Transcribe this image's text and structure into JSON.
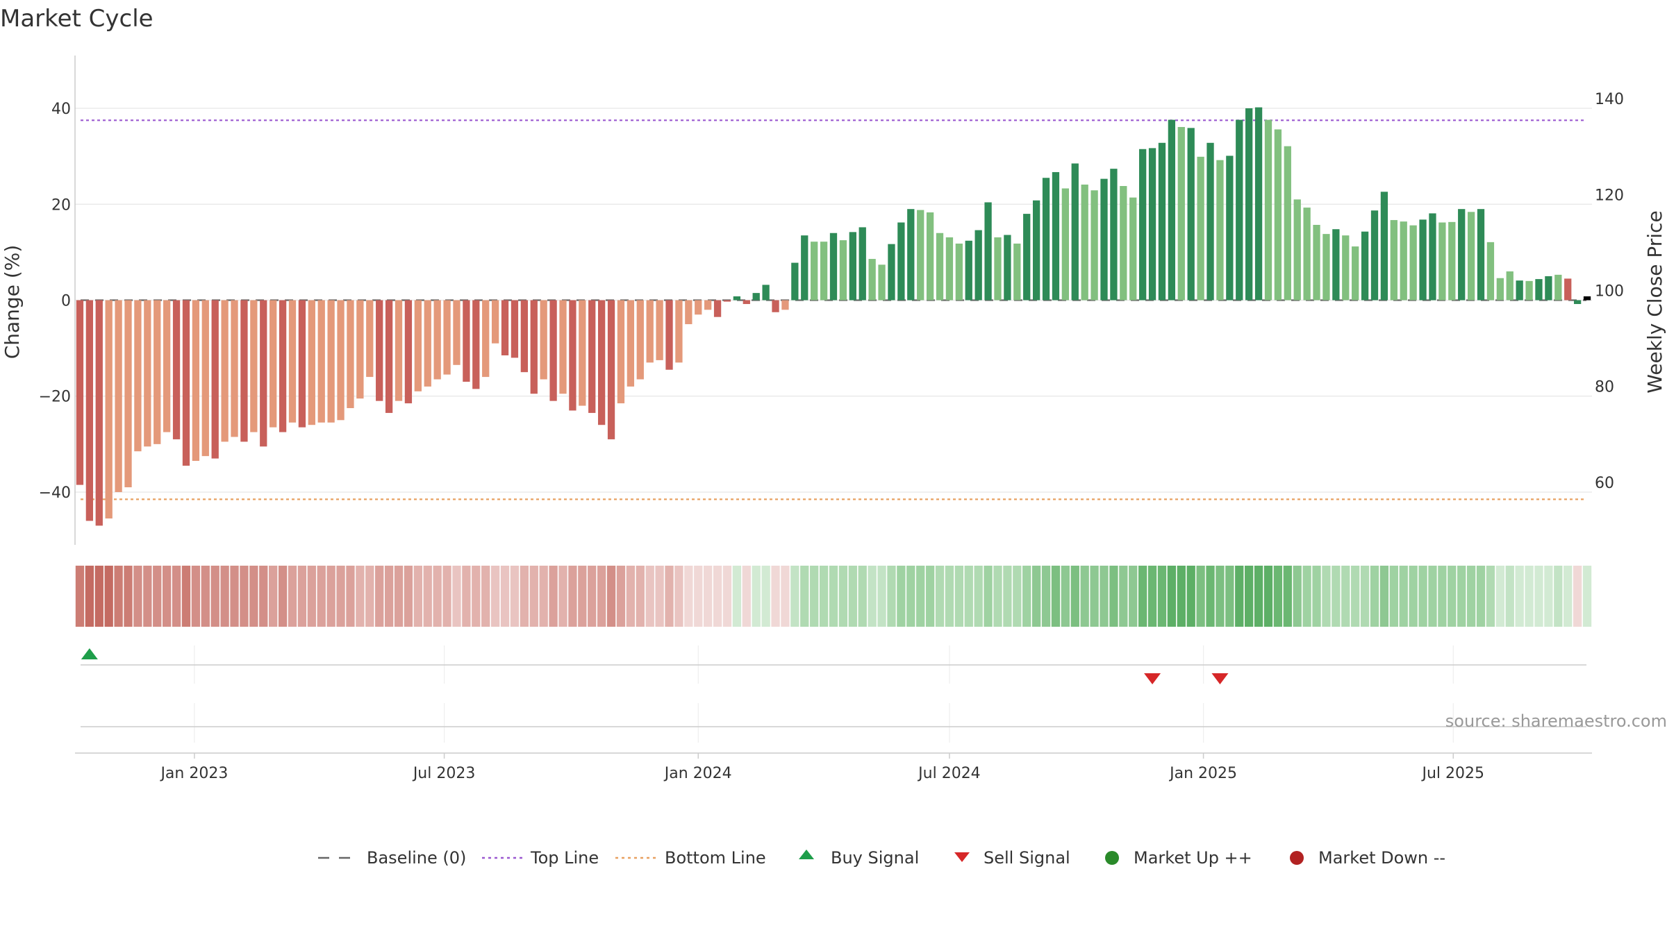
{
  "chart_data": {
    "type": "bar",
    "title": "Market Cycle",
    "ylabel": "Change (%)",
    "y2label": "Weekly Close Price",
    "ylim": [
      -51,
      51
    ],
    "y2lim": [
      49.0,
      151.0
    ],
    "yticks": [
      -40,
      -20,
      0,
      20,
      40
    ],
    "ytick_labels": [
      "−40",
      "−20",
      "0",
      "20",
      "40"
    ],
    "y2ticks": [
      60,
      80,
      100,
      120,
      140
    ],
    "x_start": "2022-10-10",
    "x_step_days": 7,
    "xticks": [
      {
        "date": "2023-01-01",
        "label": "Jan 2023"
      },
      {
        "date": "2023-07-01",
        "label": "Jul 2023"
      },
      {
        "date": "2024-01-01",
        "label": "Jan 2024"
      },
      {
        "date": "2024-07-01",
        "label": "Jul 2024"
      },
      {
        "date": "2025-01-01",
        "label": "Jan 2025"
      },
      {
        "date": "2025-07-01",
        "label": "Jul 2025"
      }
    ],
    "values": [
      -38.5,
      -46.0,
      -47.0,
      -45.5,
      -40.0,
      -39.0,
      -31.5,
      -30.5,
      -30.0,
      -27.5,
      -29.0,
      -34.5,
      -33.5,
      -32.5,
      -33.0,
      -29.5,
      -28.5,
      -29.5,
      -27.5,
      -30.5,
      -26.5,
      -27.5,
      -25.5,
      -26.5,
      -26.0,
      -25.5,
      -25.5,
      -25.0,
      -22.5,
      -20.5,
      -16.0,
      -21.0,
      -23.5,
      -21.0,
      -21.5,
      -19.0,
      -18.0,
      -16.5,
      -15.5,
      -13.5,
      -17.0,
      -18.5,
      -16.0,
      -9.0,
      -11.5,
      -12.0,
      -15.0,
      -19.5,
      -16.5,
      -21.0,
      -19.5,
      -23.0,
      -22.0,
      -23.5,
      -26.0,
      -29.0,
      -21.5,
      -18.0,
      -16.5,
      -13.0,
      -12.5,
      -14.5,
      -13.0,
      -5.0,
      -3.0,
      -2.0,
      -3.5,
      -0.3,
      0.8,
      -0.8,
      1.5,
      3.2,
      -2.5,
      -2.0,
      7.8,
      13.5,
      12.2,
      12.2,
      14.0,
      12.5,
      14.2,
      15.2,
      8.6,
      7.4,
      11.7,
      16.2,
      19.0,
      18.8,
      18.3,
      14.0,
      13.1,
      11.8,
      12.4,
      14.6,
      20.4,
      13.1,
      13.6,
      11.8,
      18.0,
      20.8,
      25.5,
      26.7,
      23.3,
      28.5,
      24.1,
      22.9,
      25.3,
      27.4,
      23.8,
      21.4,
      31.5,
      31.7,
      32.8,
      37.6,
      36.1,
      35.9,
      29.9,
      32.8,
      29.2,
      30.1,
      37.6,
      40.0,
      40.2,
      37.6,
      35.6,
      32.1,
      21.0,
      19.3,
      15.7,
      13.8,
      14.8,
      13.5,
      11.2,
      14.3,
      18.7,
      22.6,
      16.7,
      16.4,
      15.6,
      16.8,
      18.1,
      16.2,
      16.3,
      19.0,
      18.4,
      19.0,
      12.1,
      4.6,
      6.0,
      4.1,
      4.0,
      4.4,
      5.0,
      5.3,
      4.5,
      -0.8,
      0.8
    ],
    "bar_colors": [
      "#c8605a",
      "#c8605a",
      "#c8605a",
      "#e4997a",
      "#e4997a",
      "#e4997a",
      "#e4997a",
      "#e4997a",
      "#e4997a",
      "#e4997a",
      "#c8605a",
      "#c8605a",
      "#e4997a",
      "#e4997a",
      "#c8605a",
      "#e4997a",
      "#e4997a",
      "#c8605a",
      "#e4997a",
      "#c8605a",
      "#e4997a",
      "#c8605a",
      "#e4997a",
      "#c8605a",
      "#e4997a",
      "#e4997a",
      "#e4997a",
      "#e4997a",
      "#e4997a",
      "#e4997a",
      "#e4997a",
      "#c8605a",
      "#c8605a",
      "#e4997a",
      "#c8605a",
      "#e4997a",
      "#e4997a",
      "#e4997a",
      "#e4997a",
      "#e4997a",
      "#c8605a",
      "#c8605a",
      "#e4997a",
      "#e4997a",
      "#c8605a",
      "#c8605a",
      "#c8605a",
      "#c8605a",
      "#e4997a",
      "#c8605a",
      "#e4997a",
      "#c8605a",
      "#e4997a",
      "#c8605a",
      "#c8605a",
      "#c8605a",
      "#e4997a",
      "#e4997a",
      "#e4997a",
      "#e4997a",
      "#e4997a",
      "#c8605a",
      "#e4997a",
      "#e4997a",
      "#e4997a",
      "#e4997a",
      "#c8605a",
      "#c8605a",
      "#2e8b57",
      "#c8605a",
      "#2e8b57",
      "#2e8b57",
      "#c8605a",
      "#e4997a",
      "#2e8b57",
      "#2e8b57",
      "#82c07f",
      "#82c07f",
      "#2e8b57",
      "#82c07f",
      "#2e8b57",
      "#2e8b57",
      "#82c07f",
      "#82c07f",
      "#2e8b57",
      "#2e8b57",
      "#2e8b57",
      "#82c07f",
      "#82c07f",
      "#82c07f",
      "#82c07f",
      "#82c07f",
      "#2e8b57",
      "#2e8b57",
      "#2e8b57",
      "#82c07f",
      "#2e8b57",
      "#82c07f",
      "#2e8b57",
      "#2e8b57",
      "#2e8b57",
      "#2e8b57",
      "#82c07f",
      "#2e8b57",
      "#82c07f",
      "#82c07f",
      "#2e8b57",
      "#2e8b57",
      "#82c07f",
      "#82c07f",
      "#2e8b57",
      "#2e8b57",
      "#2e8b57",
      "#2e8b57",
      "#82c07f",
      "#2e8b57",
      "#82c07f",
      "#2e8b57",
      "#82c07f",
      "#2e8b57",
      "#2e8b57",
      "#2e8b57",
      "#2e8b57",
      "#82c07f",
      "#82c07f",
      "#82c07f",
      "#82c07f",
      "#82c07f",
      "#82c07f",
      "#82c07f",
      "#2e8b57",
      "#82c07f",
      "#82c07f",
      "#2e8b57",
      "#2e8b57",
      "#2e8b57",
      "#82c07f",
      "#82c07f",
      "#82c07f",
      "#2e8b57",
      "#2e8b57",
      "#82c07f",
      "#82c07f",
      "#2e8b57",
      "#82c07f",
      "#2e8b57",
      "#82c07f",
      "#82c07f",
      "#82c07f",
      "#2e8b57",
      "#82c07f",
      "#2e8b57",
      "#2e8b57",
      "#82c07f",
      "#c8605a",
      "#2e8b57"
    ],
    "reference_lines": [
      {
        "name": "Baseline (0)",
        "value": 0,
        "color": "#666666",
        "style": "dashed"
      },
      {
        "name": "Top Line",
        "value": 37.5,
        "color": "#9b59d0",
        "style": "dotted"
      },
      {
        "name": "Bottom Line",
        "value": -41.5,
        "color": "#e8a060",
        "style": "dotted"
      }
    ],
    "signals": [
      {
        "type": "buy",
        "date": "2022-10-17",
        "color": "#1e9e4a"
      },
      {
        "type": "sell",
        "date": "2024-11-25",
        "color": "#d62728"
      },
      {
        "type": "sell",
        "date": "2025-01-13",
        "color": "#d62728"
      }
    ],
    "legend": [
      {
        "label": "Baseline (0)",
        "marker": "dash",
        "color": "#666666"
      },
      {
        "label": "Top Line",
        "marker": "dotted",
        "color": "#9b59d0"
      },
      {
        "label": "Bottom Line",
        "marker": "dotted",
        "color": "#e8a060"
      },
      {
        "label": "Buy Signal",
        "marker": "triangle-up",
        "color": "#1e9e4a"
      },
      {
        "label": "Sell Signal",
        "marker": "triangle-down",
        "color": "#d62728"
      },
      {
        "label": "Market Up ++",
        "marker": "circle",
        "color": "#2a8a2a"
      },
      {
        "label": "Market Down --",
        "marker": "circle",
        "color": "#b22222"
      }
    ],
    "legend_position": "bottom-center",
    "grid": true
  },
  "source": "source: sharemaestro.com"
}
